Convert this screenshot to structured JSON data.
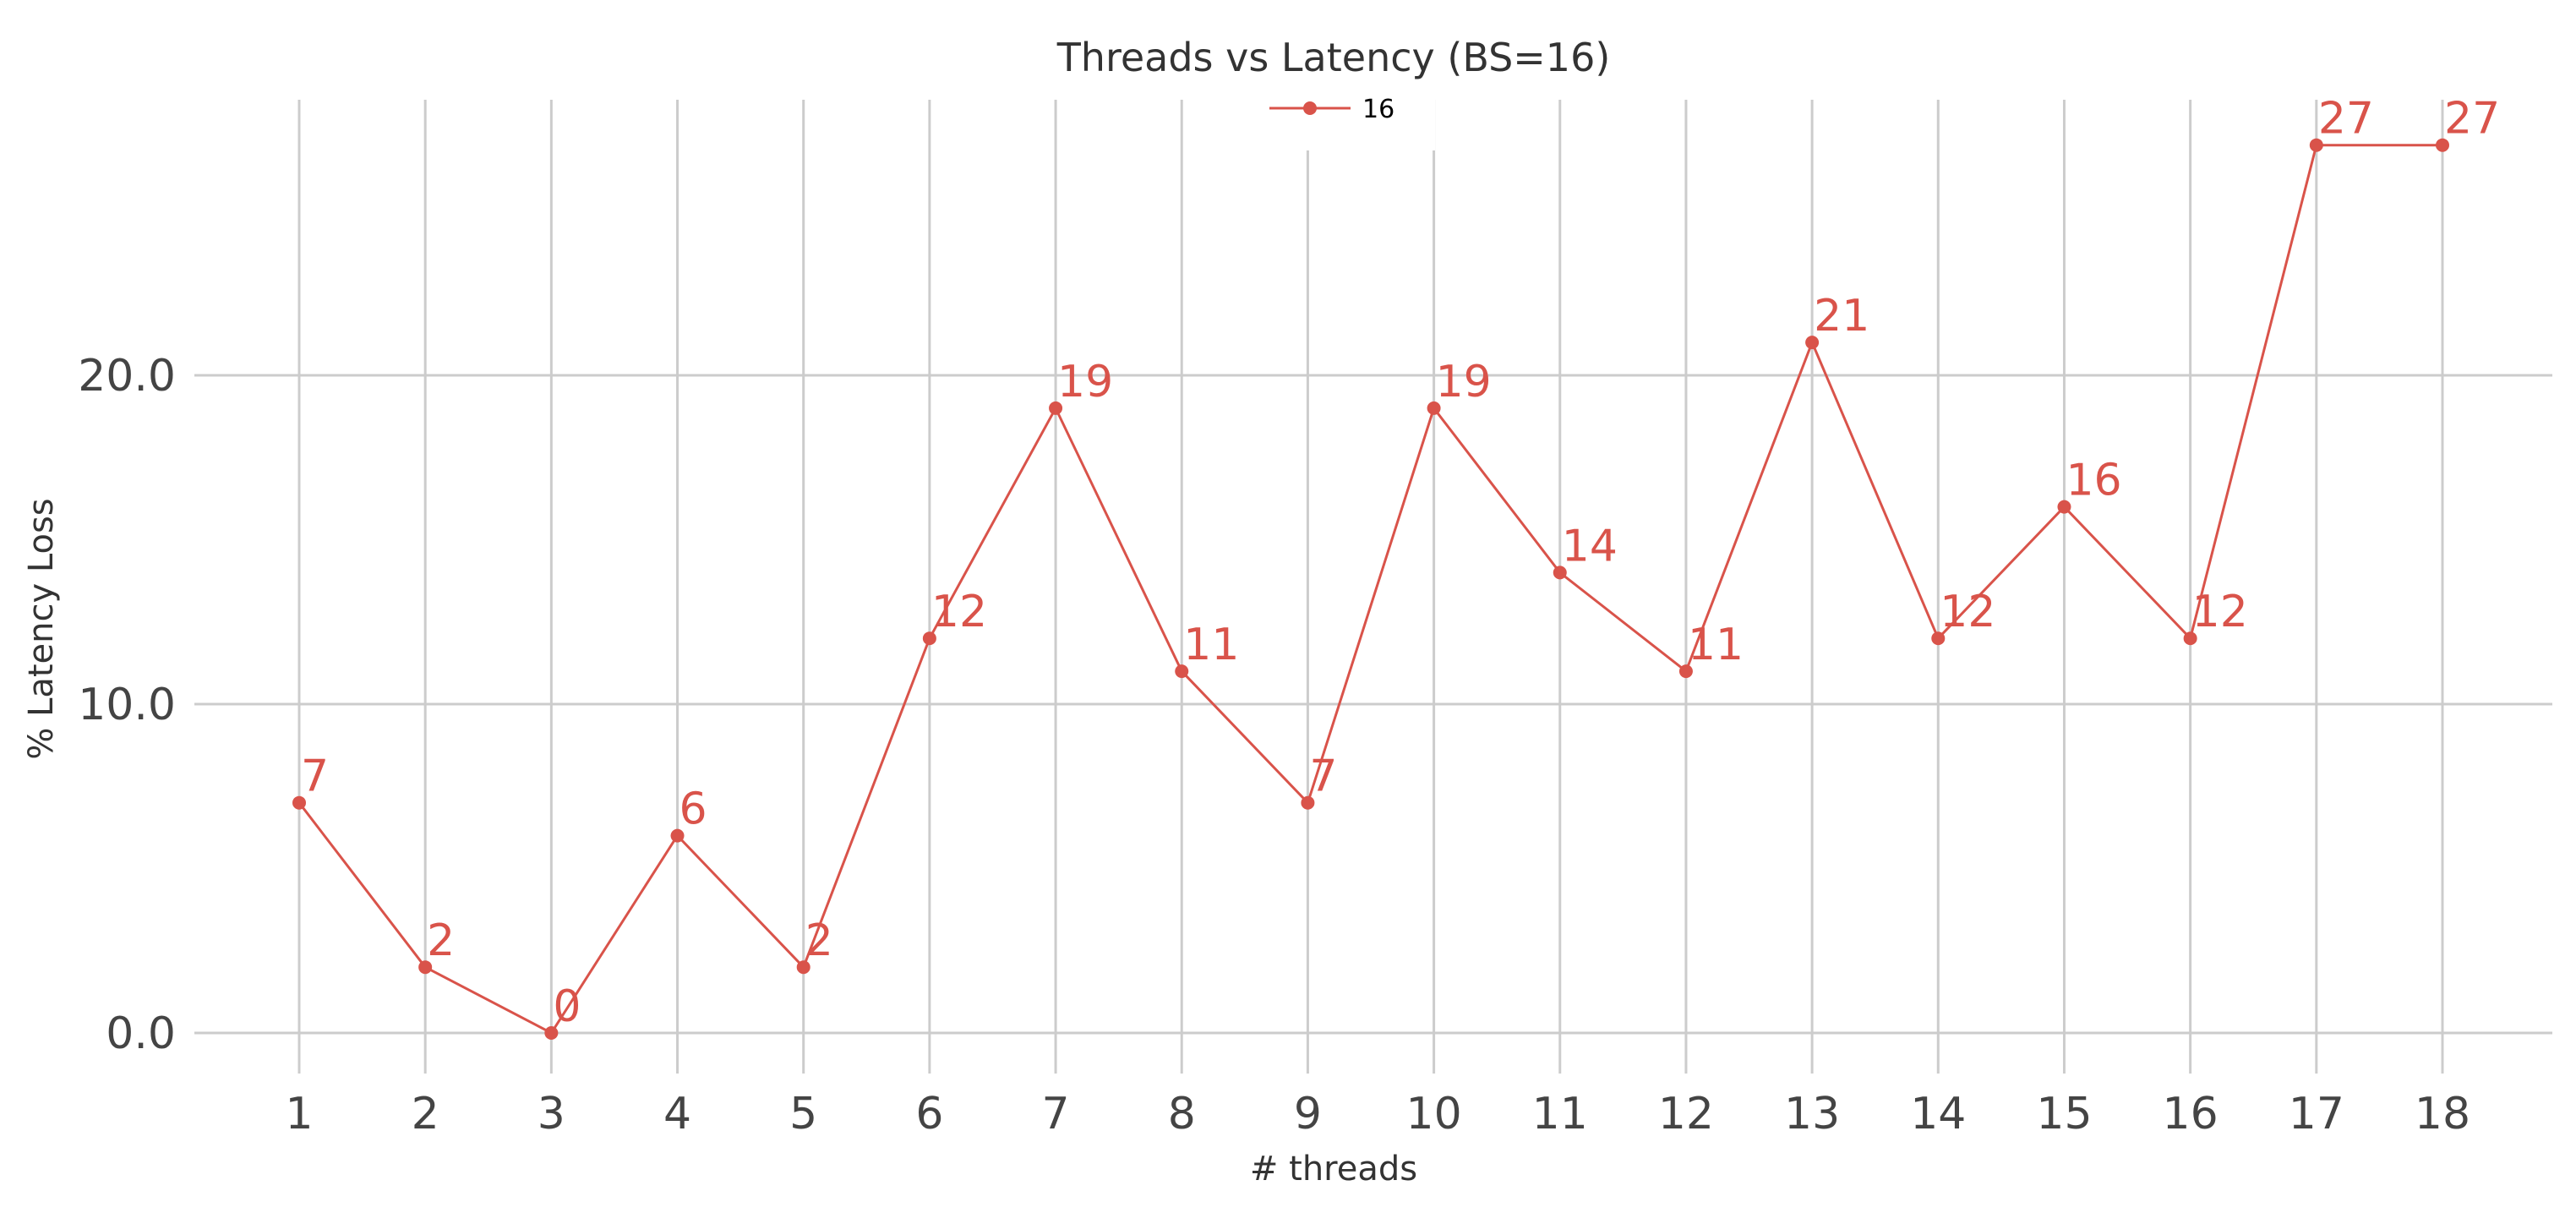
{
  "chart_data": {
    "type": "line",
    "title": "Threads vs Latency (BS=16)",
    "xlabel": "# threads",
    "ylabel": "% Latency Loss",
    "x": [
      1,
      2,
      3,
      4,
      5,
      6,
      7,
      8,
      9,
      10,
      11,
      12,
      13,
      14,
      15,
      16,
      17,
      18
    ],
    "x_tick_labels": [
      "1",
      "2",
      "3",
      "4",
      "5",
      "6",
      "7",
      "8",
      "9",
      "10",
      "11",
      "12",
      "13",
      "14",
      "15",
      "16",
      "17",
      "18"
    ],
    "y_ticks": [
      0,
      10,
      20
    ],
    "y_tick_labels": [
      "0.0",
      "10.0",
      "20.0"
    ],
    "ylim": [
      -1.5,
      28.4
    ],
    "xlim": [
      0.2,
      18.85
    ],
    "grid": true,
    "legend_position": "top-center",
    "series": [
      {
        "name": "16",
        "color": "#d9534a",
        "values": [
          7,
          2,
          0,
          6,
          2,
          12,
          19,
          11,
          7,
          19,
          14,
          11,
          21,
          12,
          16,
          12,
          27,
          27
        ],
        "data_labels": [
          "7",
          "2",
          "0",
          "6",
          "2",
          "12",
          "19",
          "11",
          "7",
          "19",
          "14",
          "11",
          "21",
          "12",
          "16",
          "12",
          "27",
          "27"
        ]
      }
    ]
  }
}
